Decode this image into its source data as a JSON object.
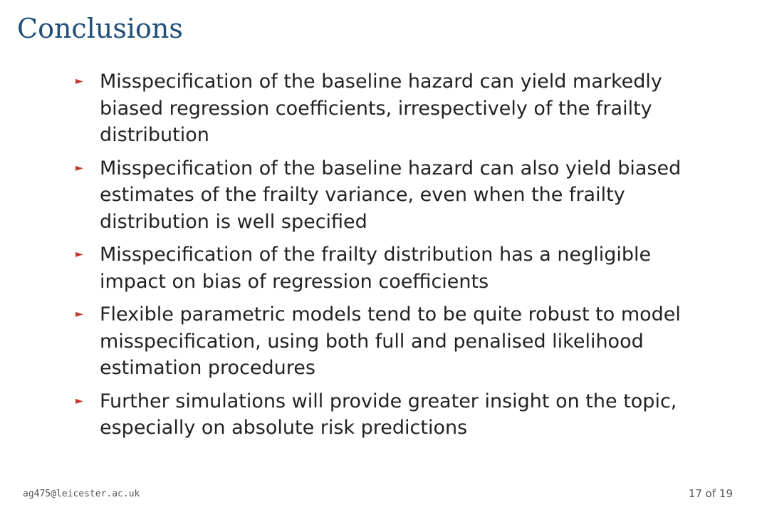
{
  "slide": {
    "title": "Conclusions",
    "bullet_marker": "►",
    "bullets": [
      "Misspecification of the baseline hazard can yield markedly biased regression coefficients, irrespectively of the frailty distribution",
      "Misspecification of the baseline hazard can also yield biased estimates of the frailty variance, even when the frailty distribution is well specified",
      "Misspecification of the frailty distribution has a negligible impact on bias of regression coefficients",
      "Flexible parametric models tend to be quite robust to model misspecification, using both full and penalised likelihood estimation procedures",
      "Further simulations will provide greater insight on the topic, especially on absolute risk predictions"
    ]
  },
  "footer": {
    "email": "ag475@leicester.ac.uk",
    "page_number": "17 of 19"
  },
  "colors": {
    "title": "#1f4e79",
    "bullet_marker": "#c0392b",
    "text": "#222222"
  }
}
